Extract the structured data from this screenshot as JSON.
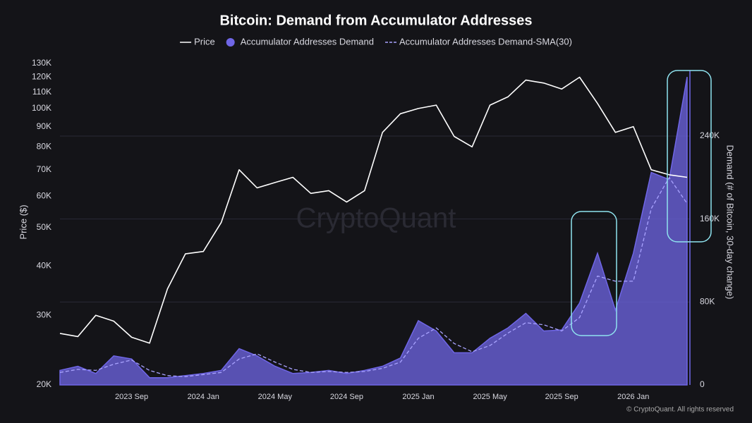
{
  "chart_data": {
    "type": "line",
    "title": "Bitcoin: Demand from Accumulator Addresses",
    "ylabel": "Price ($)",
    "y2label": "Demand (# of Bitcoin, 30-day change)",
    "watermark": "CryptoQuant",
    "credit": "© CryptoQuant. All rights reserved",
    "log_scale": true,
    "grid": true,
    "legend": "top",
    "x": [
      "2023 May",
      "2023 Jun",
      "2023 Jul",
      "2023 Aug",
      "2023 Sep",
      "2023 Oct",
      "2023 Nov",
      "2023 Dec",
      "2024 Jan",
      "2024 Feb",
      "2024 Mar",
      "2024 Apr",
      "2024 May",
      "2024 Jun",
      "2024 Jul",
      "2024 Aug",
      "2024 Sep",
      "2024 Oct",
      "2024 Nov",
      "2024 Dec",
      "2025 Jan",
      "2025 Feb",
      "2025 Mar",
      "2025 Apr",
      "2025 May",
      "2025 Jun",
      "2025 Jul",
      "2025 Aug",
      "2025 Sep",
      "2025 Oct",
      "2025 Nov",
      "2025 Dec",
      "2026 Jan",
      "2026 Feb",
      "2026 Mar",
      "2026 Apr"
    ],
    "xticks": [
      "2023 Sep",
      "2024 Jan",
      "2024 May",
      "2024 Sep",
      "2025 Jan",
      "2025 May",
      "2025 Sep",
      "2026 Jan"
    ],
    "ylim": [
      20000,
      130000
    ],
    "yticks": [
      {
        "value": 20000,
        "label": "20K"
      },
      {
        "value": 30000,
        "label": "30K"
      },
      {
        "value": 40000,
        "label": "40K"
      },
      {
        "value": 50000,
        "label": "50K"
      },
      {
        "value": 60000,
        "label": "60K"
      },
      {
        "value": 70000,
        "label": "70K"
      },
      {
        "value": 80000,
        "label": "80K"
      },
      {
        "value": 90000,
        "label": "90K"
      },
      {
        "value": 100000,
        "label": "100K"
      },
      {
        "value": 110000,
        "label": "110K"
      },
      {
        "value": 120000,
        "label": "120K"
      },
      {
        "value": 130000,
        "label": "130K"
      }
    ],
    "y2lim": [
      0,
      310000
    ],
    "y2ticks": [
      0,
      {
        "value": 80000,
        "label": "80K"
      },
      {
        "value": 160000,
        "label": "160K"
      },
      {
        "value": 240000,
        "label": "240K"
      }
    ],
    "series": [
      {
        "name": "Price",
        "color": "#ffffff",
        "style": "solid",
        "axis": "y",
        "values": [
          27000,
          26500,
          30000,
          29000,
          26400,
          25500,
          35000,
          42900,
          43500,
          51500,
          70000,
          63000,
          65000,
          67000,
          61000,
          62000,
          58000,
          62000,
          87000,
          97000,
          100000,
          102000,
          85000,
          80000,
          102000,
          107000,
          118000,
          116000,
          112000,
          120000,
          103000,
          87000,
          90000,
          70000,
          68000,
          67000
        ]
      },
      {
        "name": "Accumulator Addresses Demand",
        "color": "#6f66e6",
        "style": "area",
        "axis": "y2",
        "values": [
          14000,
          18000,
          11000,
          28000,
          25000,
          7000,
          7000,
          9000,
          11000,
          14000,
          35000,
          28000,
          18000,
          11000,
          12000,
          14000,
          11000,
          14000,
          18000,
          26000,
          62000,
          52000,
          31000,
          31000,
          45000,
          55000,
          69000,
          52000,
          53000,
          79000,
          127000,
          72000,
          127000,
          205000,
          198000,
          297000
        ]
      },
      {
        "name": "Accumulator Addresses Demand-SMA(30)",
        "color": "#a9a3ff",
        "style": "dashed",
        "axis": "y2",
        "values": [
          12000,
          15000,
          14000,
          20000,
          24000,
          14000,
          9000,
          8000,
          10000,
          12000,
          25000,
          30000,
          22000,
          15000,
          12000,
          13000,
          12000,
          13000,
          16000,
          22000,
          45000,
          55000,
          40000,
          32000,
          38000,
          50000,
          60000,
          58000,
          52000,
          65000,
          105000,
          100000,
          100000,
          170000,
          200000,
          175000
        ]
      }
    ]
  }
}
